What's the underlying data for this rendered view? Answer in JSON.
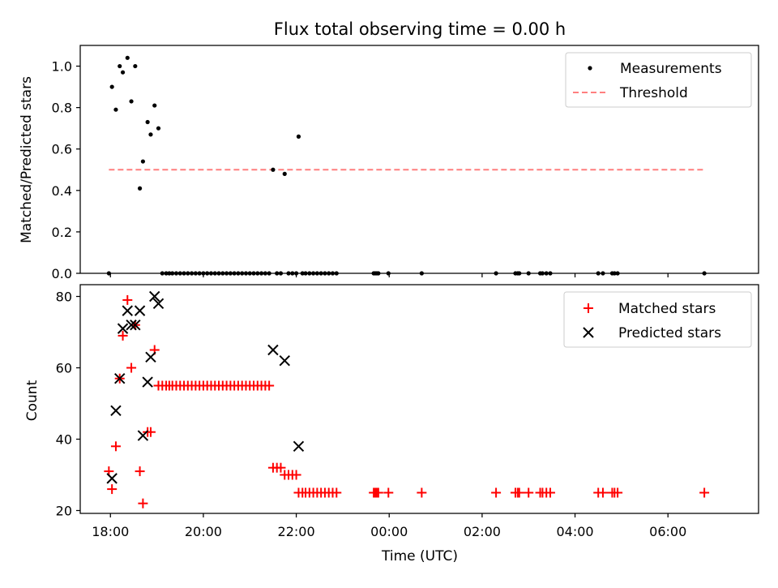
{
  "chart_data": [
    {
      "type": "scatter",
      "title": "Flux total observing time = 0.00 h",
      "xlabel": "",
      "ylabel": "Matched/Predicted stars",
      "ylim": [
        0.0,
        1.1
      ],
      "yticks": [
        "0.0",
        "0.2",
        "0.4",
        "0.6",
        "0.8",
        "1.0"
      ],
      "xlim_hours": [
        17.35,
        31.95
      ],
      "legend_position": "top-right",
      "colors": {
        "measurements": "#000000",
        "threshold": "#ff7f7f"
      },
      "series": [
        {
          "name": "Measurements",
          "marker": "dot",
          "x": [
            "17:58",
            "18:02",
            "18:07",
            "18:12",
            "18:16",
            "18:22",
            "18:27",
            "18:32",
            "18:38",
            "18:42",
            "18:48",
            "18:52",
            "18:57",
            "19:02",
            "19:07",
            "19:12",
            "19:16",
            "19:20",
            "19:25",
            "19:30",
            "19:35",
            "19:40",
            "19:45",
            "19:50",
            "19:55",
            "20:00",
            "20:05",
            "20:10",
            "20:15",
            "20:20",
            "20:25",
            "20:30",
            "20:35",
            "20:40",
            "20:45",
            "20:50",
            "20:55",
            "21:00",
            "21:05",
            "21:10",
            "21:15",
            "21:20",
            "21:25",
            "21:30",
            "21:35",
            "21:40",
            "21:45",
            "21:50",
            "21:55",
            "22:00",
            "22:03",
            "22:08",
            "22:12",
            "22:17",
            "22:22",
            "22:27",
            "22:32",
            "22:37",
            "22:42",
            "22:47",
            "22:52",
            "23:40",
            "23:42",
            "23:44",
            "23:46",
            "23:59",
            "00:42",
            "02:18",
            "02:43",
            "02:46",
            "02:48",
            "03:00",
            "03:15",
            "03:18",
            "03:23",
            "03:28",
            "04:30",
            "04:36",
            "04:48",
            "04:51",
            "04:55",
            "06:47"
          ],
          "y": [
            0.0,
            0.9,
            0.79,
            1.0,
            0.97,
            1.04,
            0.83,
            1.0,
            0.41,
            0.54,
            0.73,
            0.67,
            0.81,
            0.7,
            0.0,
            0.0,
            0.0,
            0.0,
            0.0,
            0.0,
            0.0,
            0.0,
            0.0,
            0.0,
            0.0,
            0.0,
            0.0,
            0.0,
            0.0,
            0.0,
            0.0,
            0.0,
            0.0,
            0.0,
            0.0,
            0.0,
            0.0,
            0.0,
            0.0,
            0.0,
            0.0,
            0.0,
            0.0,
            0.5,
            0.0,
            0.0,
            0.48,
            0.0,
            0.0,
            0.0,
            0.66,
            0.0,
            0.0,
            0.0,
            0.0,
            0.0,
            0.0,
            0.0,
            0.0,
            0.0,
            0.0,
            0.0,
            0.0,
            0.0,
            0.0,
            0.0,
            0.0,
            0.0,
            0.0,
            0.0,
            0.0,
            0.0,
            0.0,
            0.0,
            0.0,
            0.0,
            0.0,
            0.0,
            0.0,
            0.0,
            0.0,
            0.0
          ]
        },
        {
          "name": "Threshold",
          "line": "dashed",
          "x": [
            "17:58",
            "06:47"
          ],
          "y": [
            0.5,
            0.5
          ]
        }
      ]
    },
    {
      "type": "scatter",
      "title": "",
      "xlabel": "Time (UTC)",
      "ylabel": "Count",
      "ylim": [
        19.2,
        83.3
      ],
      "yticks": [
        "20",
        "40",
        "60",
        "80"
      ],
      "xticks": [
        "18:00",
        "20:00",
        "22:00",
        "00:00",
        "02:00",
        "04:00",
        "06:00"
      ],
      "xlim_hours": [
        17.35,
        31.95
      ],
      "legend_position": "top-right",
      "colors": {
        "matched": "#ff0000",
        "predicted": "#000000"
      },
      "series": [
        {
          "name": "Matched stars",
          "marker": "plus",
          "x": [
            "17:58",
            "18:02",
            "18:07",
            "18:12",
            "18:16",
            "18:22",
            "18:27",
            "18:32",
            "18:38",
            "18:42",
            "18:48",
            "18:52",
            "18:57",
            "19:02",
            "19:07",
            "19:12",
            "19:16",
            "19:20",
            "19:25",
            "19:30",
            "19:35",
            "19:40",
            "19:45",
            "19:50",
            "19:55",
            "20:00",
            "20:05",
            "20:10",
            "20:15",
            "20:20",
            "20:25",
            "20:30",
            "20:35",
            "20:40",
            "20:45",
            "20:50",
            "20:55",
            "21:00",
            "21:05",
            "21:10",
            "21:15",
            "21:20",
            "21:25",
            "21:30",
            "21:35",
            "21:40",
            "21:45",
            "21:50",
            "21:55",
            "22:00",
            "22:03",
            "22:08",
            "22:12",
            "22:17",
            "22:22",
            "22:27",
            "22:32",
            "22:37",
            "22:42",
            "22:47",
            "22:52",
            "23:40",
            "23:42",
            "23:44",
            "23:46",
            "23:59",
            "00:42",
            "02:18",
            "02:43",
            "02:46",
            "02:48",
            "03:00",
            "03:15",
            "03:18",
            "03:23",
            "03:28",
            "04:30",
            "04:36",
            "04:48",
            "04:51",
            "04:55",
            "06:47"
          ],
          "y": [
            31,
            26,
            38,
            57,
            69,
            79,
            60,
            72,
            31,
            22,
            42,
            42,
            65,
            55,
            55,
            55,
            55,
            55,
            55,
            55,
            55,
            55,
            55,
            55,
            55,
            55,
            55,
            55,
            55,
            55,
            55,
            55,
            55,
            55,
            55,
            55,
            55,
            55,
            55,
            55,
            55,
            55,
            55,
            32,
            32,
            32,
            30,
            30,
            30,
            30,
            25,
            25,
            25,
            25,
            25,
            25,
            25,
            25,
            25,
            25,
            25,
            25,
            25,
            25,
            25,
            25,
            25,
            25,
            25,
            25,
            25,
            25,
            25,
            25,
            25,
            25,
            25,
            25,
            25,
            25,
            25,
            25
          ]
        },
        {
          "name": "Predicted stars",
          "marker": "x",
          "x": [
            "18:02",
            "18:07",
            "18:12",
            "18:16",
            "18:22",
            "18:27",
            "18:32",
            "18:38",
            "18:42",
            "18:48",
            "18:52",
            "18:57",
            "19:02",
            "21:30",
            "21:45",
            "22:03"
          ],
          "y": [
            29,
            48,
            57,
            71,
            76,
            72,
            72,
            76,
            41,
            56,
            63,
            80,
            78,
            65,
            62,
            38
          ]
        }
      ]
    }
  ]
}
